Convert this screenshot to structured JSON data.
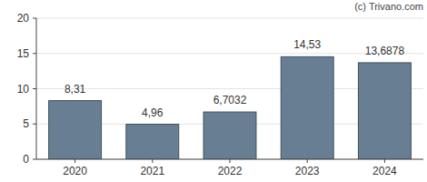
{
  "chart_data": {
    "type": "bar",
    "annotations": [
      "(c) Trivano.com"
    ],
    "categories": [
      "2020",
      "2021",
      "2022",
      "2023",
      "2024"
    ],
    "values": [
      8.31,
      4.96,
      6.7032,
      14.53,
      13.6878
    ],
    "value_labels": [
      "8,31",
      "4,96",
      "6,7032",
      "14,53",
      "13,6878"
    ],
    "color": "#687f93",
    "ylim": [
      0,
      20
    ],
    "yticks": [
      0,
      5,
      10,
      15,
      20
    ],
    "grid": true,
    "data_labels": true
  }
}
